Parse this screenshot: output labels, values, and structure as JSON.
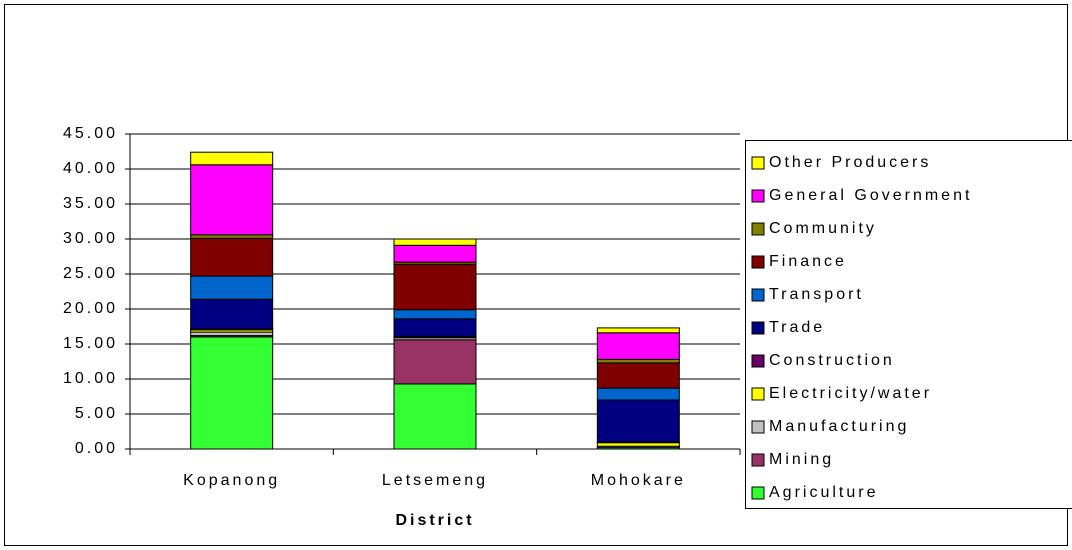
{
  "chart_data": {
    "type": "stacked_bar",
    "x_label": "District",
    "categories": [
      "Kopanong",
      "Letsemeng",
      "Mohokare"
    ],
    "series": [
      {
        "name": "Agriculture",
        "color": "#33ff33",
        "values": [
          16.0,
          9.3,
          0.2
        ]
      },
      {
        "name": "Mining",
        "color": "#993366",
        "values": [
          0.2,
          6.3,
          0.0
        ]
      },
      {
        "name": "Manufacturing",
        "color": "#c0c0c0",
        "values": [
          0.5,
          0.3,
          0.2
        ]
      },
      {
        "name": "Electricity/water",
        "color": "#ffff00",
        "values": [
          0.3,
          0.1,
          0.5
        ]
      },
      {
        "name": "Construction",
        "color": "#660066",
        "values": [
          0.2,
          0.1,
          0.1
        ]
      },
      {
        "name": "Trade",
        "color": "#000080",
        "values": [
          4.2,
          2.5,
          6.0
        ]
      },
      {
        "name": "Transport",
        "color": "#0066cc",
        "values": [
          3.3,
          1.3,
          1.7
        ]
      },
      {
        "name": "Finance",
        "color": "#800000",
        "values": [
          5.4,
          6.5,
          3.6
        ]
      },
      {
        "name": "Community",
        "color": "#808000",
        "values": [
          0.5,
          0.3,
          0.5
        ]
      },
      {
        "name": "General Government",
        "color": "#ff00ff",
        "values": [
          10.0,
          2.4,
          3.8
        ]
      },
      {
        "name": "Other Producers",
        "color": "#ffff00",
        "values": [
          1.8,
          0.9,
          0.7
        ]
      }
    ],
    "ylim": [
      0,
      45
    ],
    "yticks": [
      {
        "value": 0,
        "label": "0.00"
      },
      {
        "value": 5,
        "label": "5.00"
      },
      {
        "value": 10,
        "label": "10.00"
      },
      {
        "value": 15,
        "label": "15.00"
      },
      {
        "value": 20,
        "label": "20.00"
      },
      {
        "value": 25,
        "label": "25.00"
      },
      {
        "value": 30,
        "label": "30.00"
      },
      {
        "value": 35,
        "label": "35.00"
      },
      {
        "value": 40,
        "label": "40.00"
      },
      {
        "value": 45,
        "label": "45.00"
      }
    ],
    "grid": true,
    "legend": "right"
  }
}
